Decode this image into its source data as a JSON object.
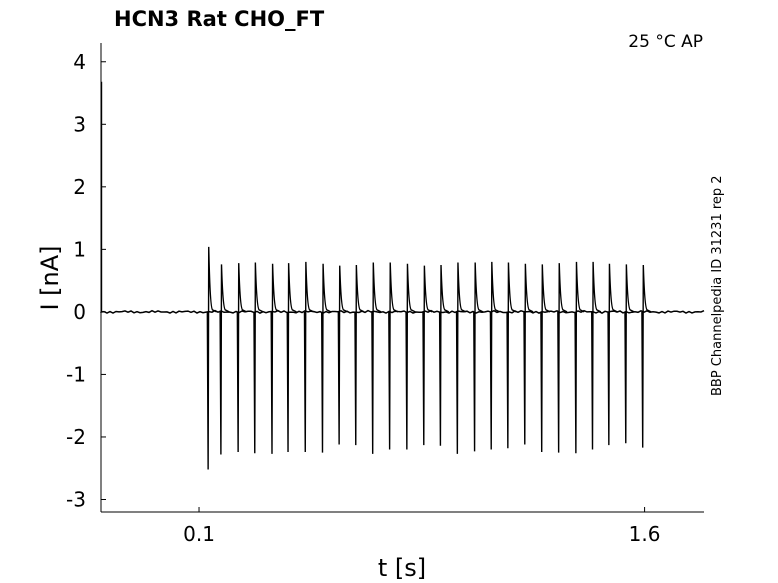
{
  "chart_data": {
    "type": "line",
    "title": "HCN3  Rat  CHO_FT",
    "annotation": "25 °C  AP",
    "side_label": "BBP Channelpedia ID 31231 rep 2",
    "xlabel": "t [s]",
    "ylabel": "I [nA]",
    "xlim": [
      -0.23,
      1.8
    ],
    "ylim": [
      -3.2,
      4.3
    ],
    "x_ticks": [
      0.1,
      1.6
    ],
    "x_tick_labels": [
      "0.1",
      "1.6"
    ],
    "y_ticks": [
      4,
      3,
      2,
      1,
      0,
      -1,
      -2,
      -3
    ],
    "y_tick_labels": [
      "4",
      "3",
      "2",
      "1",
      "0",
      "-1",
      "-2",
      "-3"
    ],
    "grid": false,
    "series": [
      {
        "baseline": 0,
        "trace_start": -0.23,
        "trace_end": 1.8,
        "initial_transient": 3.68,
        "spike_times": [
          0.132,
          0.175,
          0.233,
          0.289,
          0.347,
          0.401,
          0.459,
          0.517,
          0.573,
          0.629,
          0.686,
          0.743,
          0.801,
          0.858,
          0.914,
          0.971,
          1.029,
          1.085,
          1.141,
          1.198,
          1.255,
          1.312,
          1.37,
          1.426,
          1.481,
          1.538,
          1.595
        ],
        "spike_peaks": [
          1.04,
          0.76,
          0.78,
          0.79,
          0.77,
          0.78,
          0.8,
          0.77,
          0.74,
          0.75,
          0.79,
          0.79,
          0.77,
          0.74,
          0.75,
          0.79,
          0.79,
          0.8,
          0.79,
          0.77,
          0.76,
          0.78,
          0.8,
          0.8,
          0.77,
          0.76,
          0.75
        ],
        "spike_troughs": [
          -2.52,
          -2.28,
          -2.24,
          -2.26,
          -2.27,
          -2.24,
          -2.24,
          -2.25,
          -2.12,
          -2.13,
          -2.27,
          -2.2,
          -2.2,
          -2.13,
          -2.14,
          -2.27,
          -2.23,
          -2.2,
          -2.18,
          -2.12,
          -2.24,
          -2.25,
          -2.26,
          -2.2,
          -2.13,
          -2.1,
          -2.17
        ]
      }
    ]
  }
}
